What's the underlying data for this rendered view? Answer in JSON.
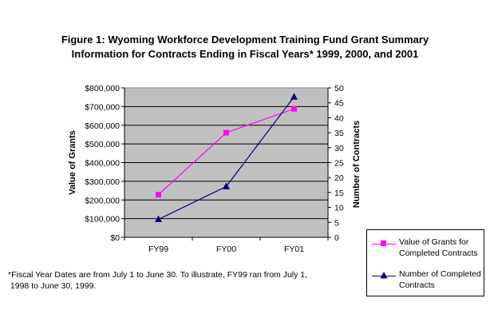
{
  "chart_data": {
    "type": "line",
    "title_line1": "Figure 1:  Wyoming Workforce Development Training Fund Grant Summary",
    "title_line2": "Information for Contracts Ending in Fiscal Years* 1999, 2000, and 2001",
    "categories": [
      "FY99",
      "FY00",
      "FY01"
    ],
    "ylabel": "Value of Grants",
    "y2label": "Number of Contracts",
    "ylim": [
      0,
      800000
    ],
    "y2lim": [
      0,
      50
    ],
    "yticks": [
      "$0",
      "$100,000",
      "$200,000",
      "$300,000",
      "$400,000",
      "$500,000",
      "$600,000",
      "$700,000",
      "$800,000"
    ],
    "y2ticks": [
      "0",
      "5",
      "10",
      "15",
      "20",
      "25",
      "30",
      "35",
      "40",
      "45",
      "50"
    ],
    "plot_background": "#c0c0c0",
    "grid": true,
    "legend_position": "bottom-right",
    "series": [
      {
        "name_line1": "Value of Grants for",
        "name_line2": "Completed Contracts",
        "axis": "left",
        "color": "#ff00ff",
        "marker": "square",
        "values": [
          228000,
          560000,
          688000
        ]
      },
      {
        "name_line1": "Number of Completed",
        "name_line2": "Contracts",
        "axis": "right",
        "color": "#000080",
        "marker": "triangle",
        "values": [
          6,
          17,
          47
        ]
      }
    ]
  },
  "footnote_line1": "*Fiscal Year Dates are from July 1 to June 30. To illustrate, FY99 ran from July 1,",
  "footnote_line2": " 1998 to June 30, 1999."
}
